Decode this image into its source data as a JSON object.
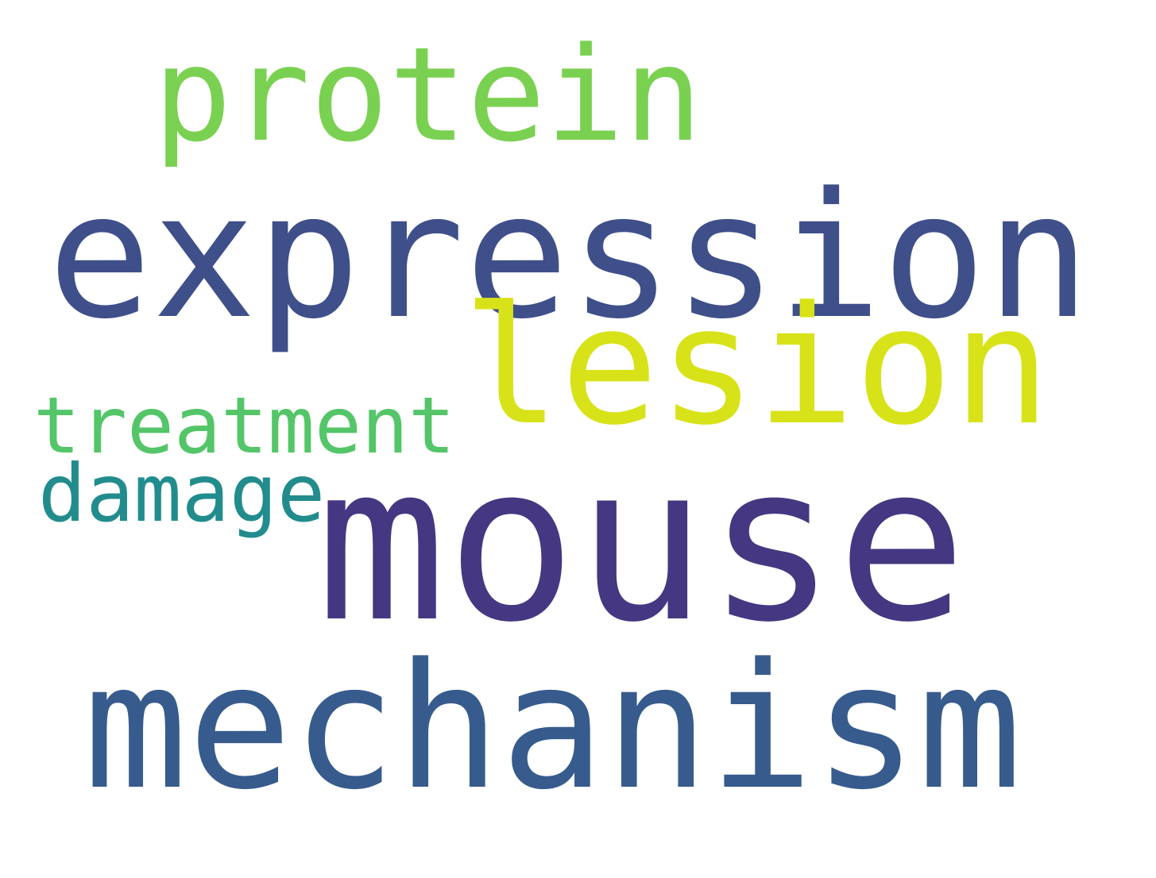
{
  "words": [
    {
      "text": "protein",
      "color": "#7ad151"
    },
    {
      "text": "expression",
      "color": "#3f4f8a"
    },
    {
      "text": "lesion",
      "color": "#d8e219"
    },
    {
      "text": "treatment",
      "color": "#54c568"
    },
    {
      "text": "damage",
      "color": "#228c8d"
    },
    {
      "text": "mouse",
      "color": "#453781"
    },
    {
      "text": "mechanism",
      "color": "#375b8d"
    }
  ]
}
